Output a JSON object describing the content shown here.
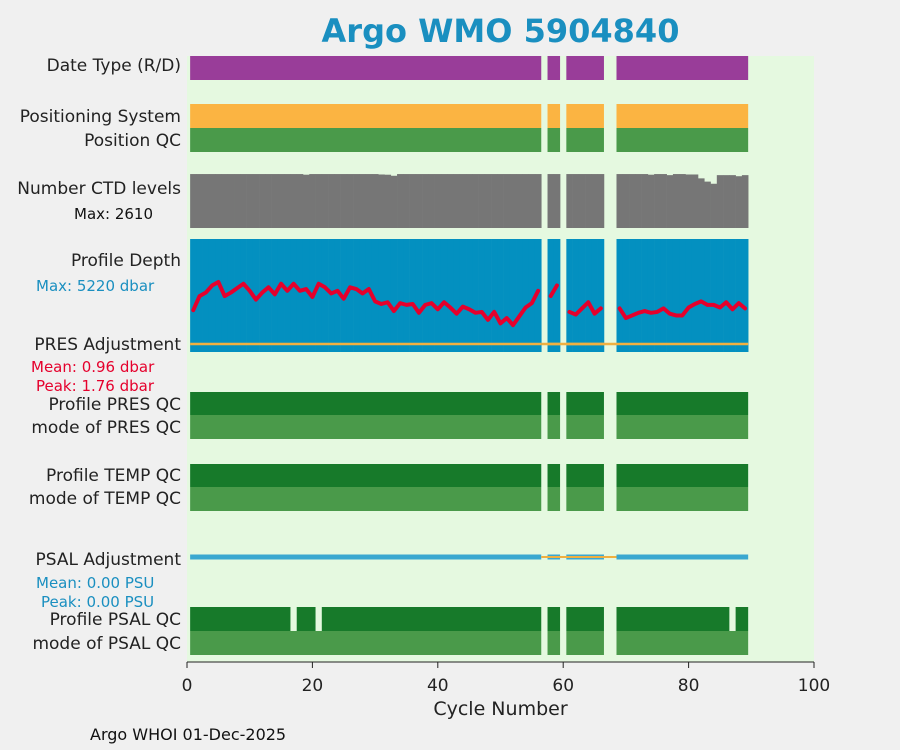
{
  "chart_data": {
    "type": "bar",
    "title": "Argo WMO 5904840",
    "xlabel": "Cycle Number",
    "xlim": [
      0,
      100
    ],
    "xticks": [
      0,
      20,
      40,
      60,
      80,
      100
    ],
    "grid": false,
    "footer": "Argo WHOI 01-Dec-2025",
    "cycles_present": [
      1,
      56
    ],
    "cycles_present_2": [
      58,
      59
    ],
    "cycles_present_3": [
      61,
      66
    ],
    "cycles_present_4": [
      69,
      89
    ],
    "rows": {
      "date_type": {
        "label": "Date Type (R/D)",
        "color": "#993d99"
      },
      "positioning_system": {
        "label": "Positioning System",
        "color": "#fbb442"
      },
      "position_qc": {
        "label": "Position QC",
        "color": "#4a9a4a"
      },
      "ctd_levels": {
        "label": "Number CTD levels",
        "max_label": "Max: 2610",
        "max": 2610,
        "color": "#767676"
      },
      "profile_depth": {
        "label": "Profile Depth",
        "max_label": "Max: 5220 dbar",
        "max": 5220,
        "color": "#0390c0",
        "pres_max_line_color": "#e5002c"
      },
      "pres_adjustment": {
        "label": "PRES Adjustment",
        "mean_label": "Mean: 0.96 dbar",
        "peak_label": "Peak: 1.76 dbar",
        "color": "#f0b040",
        "text_color": "#e5002c"
      },
      "profile_pres_qc": {
        "label": "Profile PRES QC",
        "color": "#177a2a"
      },
      "mode_pres_qc": {
        "label": "mode of PRES QC",
        "color": "#4a9a4a"
      },
      "profile_temp_qc": {
        "label": "Profile TEMP QC",
        "color": "#177a2a"
      },
      "mode_temp_qc": {
        "label": "mode of TEMP QC",
        "color": "#4a9a4a"
      },
      "psal_adjustment": {
        "label": "PSAL Adjustment",
        "mean_label": "Mean: 0.00 PSU",
        "peak_label": "Peak: 0.00 PSU",
        "color": "#3aa8d0",
        "text_color": "#1a8fc0"
      },
      "profile_psal_qc": {
        "label": "Profile PSAL QC",
        "color": "#177a2a",
        "gap_cycles": [
          17,
          21,
          87
        ]
      },
      "mode_psal_qc": {
        "label": "mode of PSAL QC",
        "color": "#4a9a4a"
      }
    },
    "ctd_levels_values": [
      2500,
      2500,
      2500,
      2500,
      2500,
      2500,
      2500,
      2500,
      2500,
      2500,
      2500,
      2500,
      2500,
      2500,
      2500,
      2500,
      2500,
      2500,
      2470,
      2500,
      2500,
      2500,
      2500,
      2500,
      2500,
      2500,
      2500,
      2500,
      2500,
      2500,
      2480,
      2470,
      2420,
      2500,
      2500,
      2500,
      2500,
      2500,
      2500,
      2500,
      2500,
      2500,
      2500,
      2500,
      2500,
      2500,
      2500,
      2500,
      2500,
      2500,
      2500,
      2500,
      2500,
      2500,
      2500,
      2500,
      null,
      2500,
      2500,
      null,
      2500,
      2500,
      2500,
      2500,
      2500,
      2500,
      null,
      null,
      2500,
      2500,
      2500,
      2500,
      2500,
      2470,
      2500,
      2500,
      2450,
      2500,
      2500,
      2480,
      2480,
      2300,
      2150,
      2050,
      2450,
      2450,
      2450,
      2400,
      2450
    ],
    "profile_depth_values": [
      5220,
      5220,
      5220,
      5220,
      5220,
      5220,
      5220,
      5220,
      5220,
      5220,
      5220,
      5220,
      5220,
      5220,
      5220,
      5220,
      5220,
      5220,
      5220,
      5220,
      5220,
      5220,
      5220,
      5220,
      5220,
      5220,
      5220,
      5220,
      5220,
      5220,
      5220,
      5220,
      5220,
      5220,
      5220,
      5220,
      5220,
      5220,
      5220,
      5220,
      5220,
      5220,
      5220,
      5220,
      5220,
      5220,
      5220,
      5220,
      5220,
      5220,
      5220,
      5220,
      5220,
      5220,
      5220,
      5220,
      null,
      5220,
      5220,
      null,
      5220,
      5220,
      5220,
      5220,
      5220,
      5220,
      null,
      null,
      5220,
      5220,
      5220,
      5220,
      5220,
      5220,
      5220,
      5220,
      5220,
      5220,
      5220,
      5220,
      5220,
      5220,
      5220,
      5220,
      5220,
      5220,
      5220,
      5220,
      5220
    ],
    "pres_max_values": [
      4720,
      4560,
      4520,
      4440,
      4400,
      4560,
      4520,
      4470,
      4420,
      4500,
      4600,
      4520,
      4460,
      4540,
      4420,
      4500,
      4420,
      4500,
      4480,
      4570,
      4420,
      4460,
      4530,
      4500,
      4590,
      4460,
      4480,
      4530,
      4480,
      4620,
      4650,
      4630,
      4730,
      4640,
      4660,
      4650,
      4750,
      4660,
      4640,
      4710,
      4630,
      4690,
      4760,
      4680,
      4710,
      4750,
      4740,
      4830,
      4740,
      4870,
      4810,
      4890,
      4790,
      4690,
      4640,
      4500,
      null,
      4560,
      4440,
      null,
      4740,
      4770,
      4700,
      4630,
      4760,
      4700,
      null,
      null,
      4700,
      4810,
      4780,
      4750,
      4730,
      4750,
      4740,
      4700,
      4760,
      4780,
      4780,
      4690,
      4650,
      4620,
      4660,
      4660,
      4690,
      4630,
      4710,
      4640,
      4700
    ],
    "xtick_labels": [
      "0",
      "20",
      "40",
      "60",
      "80",
      "100"
    ]
  }
}
